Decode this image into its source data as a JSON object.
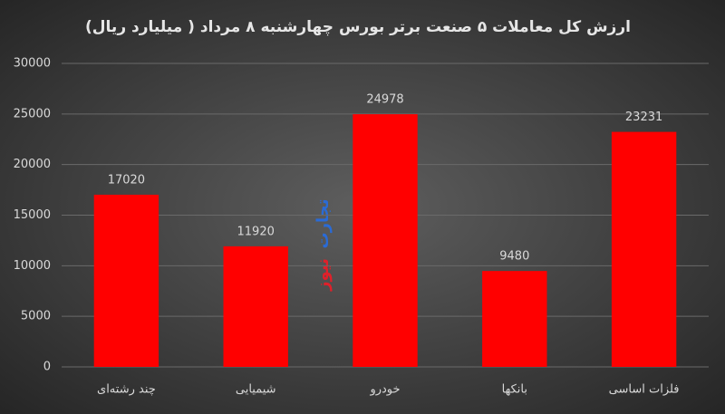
{
  "chart_data": {
    "type": "bar",
    "title": "ارزش کل معاملات ۵ صنعت برتر بورس چهارشنبه ۸ مرداد ( میلیارد ریال)",
    "categories": [
      "چند رشته‌ای",
      "شیمیایی",
      "خودرو",
      "بانکها",
      "فلزات اساسی"
    ],
    "values": [
      17020,
      11920,
      24978,
      9480,
      23231
    ],
    "color": "#ff0000",
    "ylim": [
      0,
      30000
    ],
    "yticks": [
      0,
      5000,
      10000,
      15000,
      20000,
      25000,
      30000
    ],
    "grid": true,
    "watermark": [
      "تجارت",
      "نیوز"
    ]
  }
}
